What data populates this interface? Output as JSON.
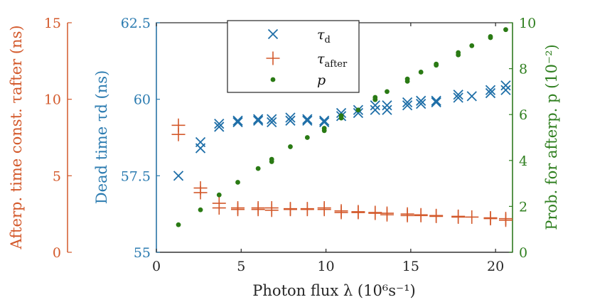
{
  "chart_data": {
    "type": "scatter",
    "title": "",
    "xlabel": "Photon flux λ (10⁶s⁻¹)",
    "xlim": [
      0,
      21
    ],
    "xticks": [
      0,
      5,
      10,
      15,
      20
    ],
    "xticklabels": [
      "0",
      "5",
      "10",
      "15",
      "20"
    ],
    "axes": {
      "dead_time": {
        "label": "Dead time τd (ns)",
        "ylim": [
          55,
          62.5
        ],
        "ticks": [
          55,
          57.5,
          60,
          62.5
        ],
        "ticklabels": [
          "55",
          "57.5",
          "60",
          "62.5"
        ],
        "color": "#2b7bb0"
      },
      "afterpulse_prob": {
        "label": "Prob. for afterp. p (10⁻²)",
        "ylim": [
          0,
          10
        ],
        "ticks": [
          0,
          2,
          4,
          6,
          8,
          10
        ],
        "ticklabels": [
          "0",
          "2",
          "4",
          "6",
          "8",
          "10"
        ],
        "color": "#2f7f1f"
      },
      "afterpulse_time": {
        "label": "Afterp. time const. τafter (ns)",
        "ylim": [
          0,
          15
        ],
        "ticks": [
          0,
          5,
          10,
          15
        ],
        "ticklabels": [
          "0",
          "5",
          "10",
          "15"
        ],
        "color": "#d3592b"
      }
    },
    "legend": {
      "position": "top-center",
      "entries": [
        {
          "label": "τd",
          "main": "τ",
          "sub": "d",
          "marker": "x",
          "color": "#1f6fa8"
        },
        {
          "label": "τafter",
          "main": "τ",
          "sub": "after",
          "marker": "+",
          "color": "#d3592b"
        },
        {
          "label": "p",
          "main": "p",
          "sub": "",
          "marker": "dot",
          "color": "#2a7a14"
        }
      ]
    },
    "series": [
      {
        "name": "τd",
        "axis": "dead_time",
        "marker": "x",
        "color": "#1f6fa8",
        "points": [
          [
            1.3,
            57.5
          ],
          [
            2.6,
            58.4
          ],
          [
            2.6,
            58.6
          ],
          [
            3.7,
            59.1
          ],
          [
            3.7,
            59.2
          ],
          [
            4.8,
            59.25
          ],
          [
            4.8,
            59.3
          ],
          [
            6.0,
            59.3
          ],
          [
            6.0,
            59.35
          ],
          [
            6.8,
            59.25
          ],
          [
            6.8,
            59.35
          ],
          [
            7.9,
            59.3
          ],
          [
            7.9,
            59.4
          ],
          [
            8.9,
            59.3
          ],
          [
            8.9,
            59.35
          ],
          [
            9.9,
            59.25
          ],
          [
            9.9,
            59.3
          ],
          [
            10.9,
            59.45
          ],
          [
            10.9,
            59.55
          ],
          [
            11.9,
            59.55
          ],
          [
            11.9,
            59.65
          ],
          [
            12.9,
            59.65
          ],
          [
            12.9,
            59.8
          ],
          [
            13.6,
            59.65
          ],
          [
            13.6,
            59.8
          ],
          [
            14.8,
            59.8
          ],
          [
            14.8,
            59.9
          ],
          [
            15.6,
            59.85
          ],
          [
            15.6,
            59.95
          ],
          [
            16.5,
            59.9
          ],
          [
            16.5,
            59.95
          ],
          [
            17.8,
            60.05
          ],
          [
            17.8,
            60.15
          ],
          [
            18.6,
            60.1
          ],
          [
            19.7,
            60.2
          ],
          [
            19.7,
            60.3
          ],
          [
            20.6,
            60.3
          ],
          [
            20.6,
            60.45
          ]
        ]
      },
      {
        "name": "τafter",
        "axis": "afterpulse_time",
        "marker": "+",
        "color": "#d3592b",
        "points": [
          [
            1.3,
            7.7
          ],
          [
            1.3,
            8.3
          ],
          [
            2.6,
            3.9
          ],
          [
            2.6,
            4.2
          ],
          [
            3.7,
            2.9
          ],
          [
            3.7,
            3.2
          ],
          [
            4.8,
            2.8
          ],
          [
            4.8,
            2.9
          ],
          [
            6.0,
            2.8
          ],
          [
            6.0,
            2.9
          ],
          [
            6.8,
            2.75
          ],
          [
            6.8,
            2.9
          ],
          [
            7.9,
            2.8
          ],
          [
            7.9,
            2.85
          ],
          [
            8.9,
            2.8
          ],
          [
            8.9,
            2.85
          ],
          [
            9.9,
            2.8
          ],
          [
            9.9,
            2.9
          ],
          [
            10.9,
            2.6
          ],
          [
            10.9,
            2.7
          ],
          [
            11.9,
            2.6
          ],
          [
            11.9,
            2.65
          ],
          [
            12.9,
            2.55
          ],
          [
            12.9,
            2.6
          ],
          [
            13.6,
            2.45
          ],
          [
            13.6,
            2.55
          ],
          [
            14.8,
            2.4
          ],
          [
            14.8,
            2.5
          ],
          [
            15.6,
            2.4
          ],
          [
            15.6,
            2.45
          ],
          [
            16.5,
            2.35
          ],
          [
            16.5,
            2.4
          ],
          [
            17.8,
            2.3
          ],
          [
            17.8,
            2.35
          ],
          [
            18.6,
            2.3
          ],
          [
            19.7,
            2.2
          ],
          [
            19.7,
            2.25
          ],
          [
            20.6,
            2.1
          ],
          [
            20.6,
            2.2
          ]
        ]
      },
      {
        "name": "p",
        "axis": "afterpulse_prob",
        "marker": "dot",
        "color": "#2a7a14",
        "points": [
          [
            1.3,
            1.2
          ],
          [
            2.6,
            1.85
          ],
          [
            3.7,
            2.5
          ],
          [
            4.8,
            3.05
          ],
          [
            6.0,
            3.65
          ],
          [
            6.8,
            3.95
          ],
          [
            6.8,
            4.05
          ],
          [
            7.9,
            4.6
          ],
          [
            8.9,
            5.0
          ],
          [
            9.9,
            5.3
          ],
          [
            9.9,
            5.4
          ],
          [
            10.9,
            5.85
          ],
          [
            10.9,
            5.95
          ],
          [
            11.9,
            6.2
          ],
          [
            12.9,
            6.65
          ],
          [
            12.9,
            6.75
          ],
          [
            13.6,
            7.0
          ],
          [
            14.8,
            7.45
          ],
          [
            14.8,
            7.55
          ],
          [
            15.6,
            7.85
          ],
          [
            16.5,
            8.15
          ],
          [
            16.5,
            8.2
          ],
          [
            17.8,
            8.6
          ],
          [
            17.8,
            8.7
          ],
          [
            18.6,
            9.0
          ],
          [
            19.7,
            9.35
          ],
          [
            19.7,
            9.4
          ],
          [
            20.6,
            9.7
          ]
        ]
      }
    ]
  }
}
